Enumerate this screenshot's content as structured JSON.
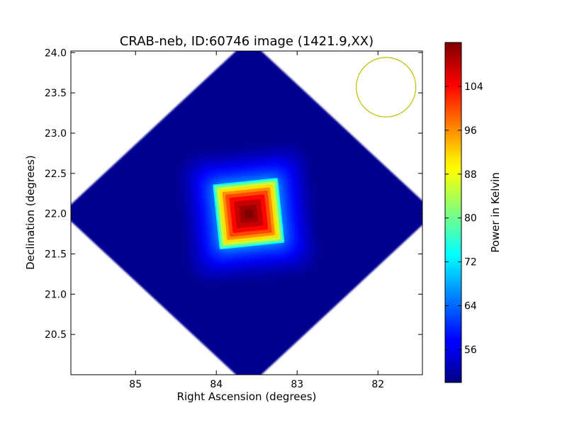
{
  "chart_data": {
    "type": "heatmap",
    "title": "CRAB-neb, ID:60746 image (1421.9,XX)",
    "xlabel": "Right Ascension (degrees)",
    "ylabel": "Declination (degrees)",
    "xlim": [
      85.8,
      81.45
    ],
    "ylim": [
      20.0,
      24.02
    ],
    "x_inverted": true,
    "xticks": [
      85,
      84,
      83,
      82
    ],
    "xtick_labels": [
      "85",
      "84",
      "83",
      "82"
    ],
    "yticks": [
      20.5,
      21.0,
      21.5,
      22.0,
      22.5,
      23.0,
      23.5,
      24.0
    ],
    "ytick_labels": [
      "20.5",
      "21.0",
      "21.5",
      "22.0",
      "22.5",
      "23.0",
      "23.5",
      "24.0"
    ],
    "colormap": "jet",
    "colorbar": {
      "label": "Power in Kelvin",
      "range": [
        50,
        112
      ],
      "ticks": [
        56,
        64,
        72,
        80,
        88,
        96,
        104
      ],
      "tick_labels": [
        "56",
        "64",
        "72",
        "80",
        "88",
        "96",
        "104"
      ]
    },
    "source": {
      "ra": 83.6,
      "dec": 22.0,
      "peak_kelvin": 112
    },
    "background_kelvin": 51,
    "coverage_center": {
      "ra": 83.6,
      "dec": 22.01
    },
    "beam": {
      "ra": 81.9,
      "dec": 23.57,
      "color": "#bfbf00"
    },
    "grid": false
  }
}
